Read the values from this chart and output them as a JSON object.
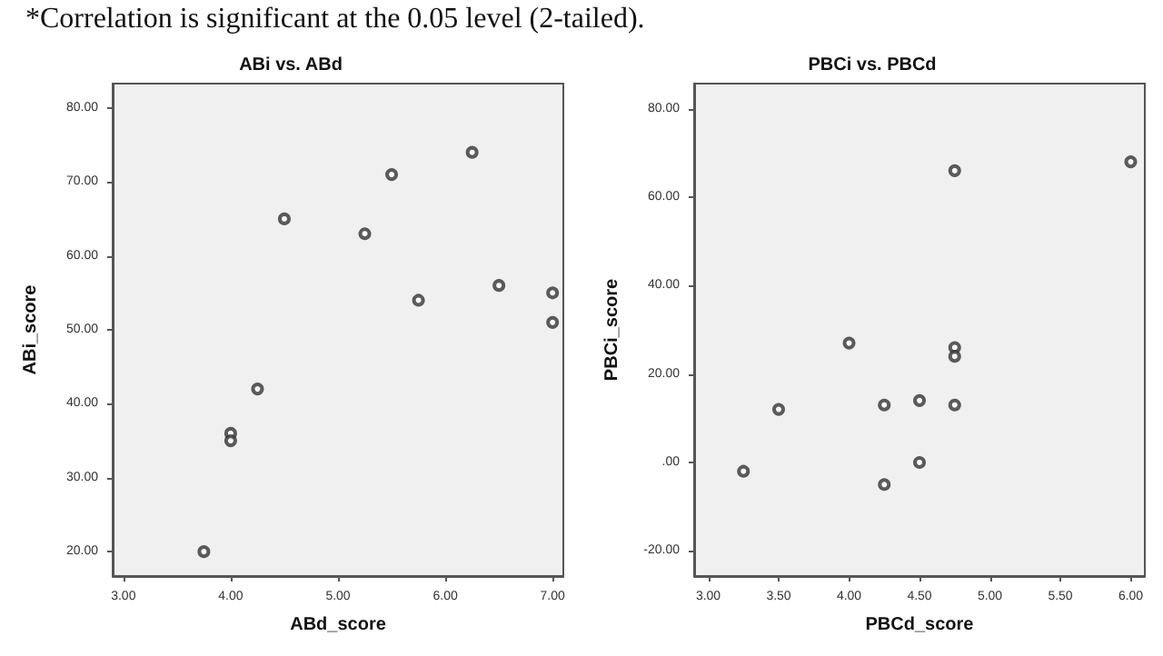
{
  "chart_data": [
    {
      "type": "scatter",
      "title": "ABi vs. ABd",
      "xlabel": "ABd_score",
      "ylabel": "ABi_score",
      "annotations": [
        "*Correlation is significant at the 0.05 level (2-tailed)."
      ],
      "marker": "circle",
      "grid": false,
      "series": [
        {
          "color": "#333333",
          "x": [
            3.75,
            4,
            4,
            4.25,
            4.5,
            5.25,
            5.5,
            5.75,
            6.25,
            6.5,
            7,
            7
          ],
          "values": [
            20,
            36,
            35,
            42,
            65,
            63,
            71,
            54,
            74,
            56,
            55,
            51
          ]
        }
      ],
      "xlim": [
        2.9,
        7.1
      ],
      "xticks": [
        {
          "value": 3,
          "label": "3.00"
        },
        {
          "value": 4,
          "label": "4.00"
        },
        {
          "value": 5,
          "label": "5.00"
        },
        {
          "value": 6,
          "label": "6.00"
        },
        {
          "value": 7,
          "label": "7.00"
        }
      ],
      "ylim": [
        16.7,
        83.3
      ],
      "yticks": [
        {
          "value": 20,
          "label": "20.00"
        },
        {
          "value": 30,
          "label": "30.00"
        },
        {
          "value": 40,
          "label": "40.00"
        },
        {
          "value": 50,
          "label": "50.00"
        },
        {
          "value": 60,
          "label": "60.00"
        },
        {
          "value": 70,
          "label": "70.00"
        },
        {
          "value": 80,
          "label": "80.00"
        }
      ]
    },
    {
      "type": "scatter",
      "title": "PBCi vs. PBCd",
      "xlabel": "PBCd_score",
      "ylabel": "PBCi_score",
      "marker": "circle",
      "grid": false,
      "series": [
        {
          "color": "#333333",
          "x": [
            3.25,
            3.5,
            4,
            4.25,
            4.25,
            4.5,
            4.5,
            4.75,
            4.75,
            4.75,
            4.75,
            6
          ],
          "values": [
            -2,
            12,
            27,
            13,
            -5,
            14,
            0,
            66,
            26,
            24,
            13,
            68
          ]
        }
      ],
      "xlim": [
        2.9,
        6.1
      ],
      "xticks": [
        {
          "value": 3,
          "label": "3.00"
        },
        {
          "value": 3.5,
          "label": "3.50"
        },
        {
          "value": 4,
          "label": "4.00"
        },
        {
          "value": 4.5,
          "label": "4.50"
        },
        {
          "value": 5,
          "label": "5.00"
        },
        {
          "value": 5.5,
          "label": "5.50"
        },
        {
          "value": 6,
          "label": "6.00"
        }
      ],
      "ylim": [
        -25.7,
        85.7
      ],
      "yticks": [
        {
          "value": -20,
          "label": "-20.00"
        },
        {
          "value": 0,
          "label": ".00"
        },
        {
          "value": 20,
          "label": "20.00"
        },
        {
          "value": 40,
          "label": "40.00"
        },
        {
          "value": 60,
          "label": "60.00"
        },
        {
          "value": 80,
          "label": "80.00"
        }
      ]
    }
  ]
}
